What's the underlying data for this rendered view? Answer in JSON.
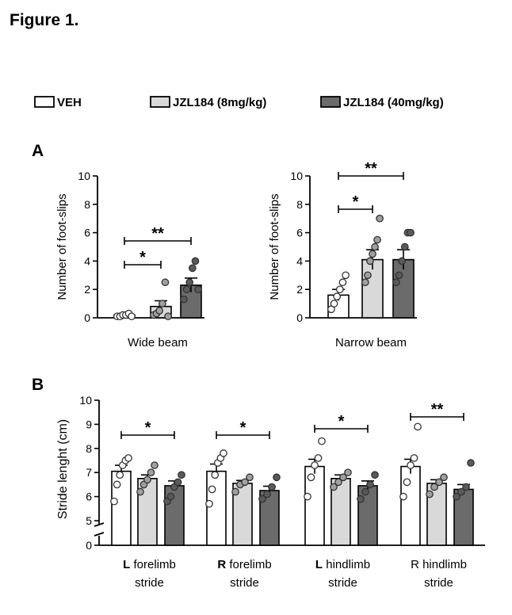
{
  "figure_title": "Figure 1.",
  "colors": {
    "VEH": "#ffffff",
    "JZL8": "#d9d9d9",
    "JZL40": "#6b6b6b",
    "dot_light": "#ffffff",
    "dot_mid": "#a0a0a0",
    "dot_dark": "#5a5a5a"
  },
  "legend": [
    {
      "key": "VEH",
      "label": "VEH"
    },
    {
      "key": "JZL8",
      "label": "JZL184 (8mg/kg)"
    },
    {
      "key": "JZL40",
      "label": "JZL184 (40mg/kg)"
    }
  ],
  "panel_labels": {
    "A": "A",
    "B": "B"
  },
  "chart_data": [
    {
      "type": "bar",
      "panel": "A",
      "title": "",
      "xlabel": "Wide beam",
      "ylabel": "Number of foot-slips",
      "ylim": [
        0,
        10
      ],
      "yticks": [
        "0",
        "2",
        "4",
        "6",
        "8",
        "10"
      ],
      "grid": false,
      "series": [
        {
          "name": "VEH",
          "value": 0.2,
          "sem": 0.1,
          "points": [
            0.1,
            0.1,
            0.2,
            0.2,
            0.3,
            0.1
          ]
        },
        {
          "name": "JZL184 (8mg/kg)",
          "value": 0.8,
          "sem": 0.4,
          "points": [
            0.2,
            0.3,
            0.5,
            1.0,
            2.5,
            0.1
          ]
        },
        {
          "name": "JZL184 (40mg/kg)",
          "value": 2.3,
          "sem": 0.5,
          "points": [
            1.3,
            2.0,
            2.5,
            3.5,
            4.0,
            2.0
          ]
        }
      ],
      "significance": [
        {
          "from": 0,
          "to": 1,
          "label": "*"
        },
        {
          "from": 0,
          "to": 2,
          "label": "**"
        }
      ]
    },
    {
      "type": "bar",
      "panel": "A",
      "title": "",
      "xlabel": "Narrow beam",
      "ylabel": "Number of foot-slips",
      "ylim": [
        0,
        10
      ],
      "yticks": [
        "0",
        "2",
        "4",
        "6",
        "8",
        "10"
      ],
      "grid": false,
      "series": [
        {
          "name": "VEH",
          "value": 1.6,
          "sem": 0.4,
          "points": [
            0.6,
            1.0,
            1.5,
            2.0,
            2.5,
            3.0
          ]
        },
        {
          "name": "JZL184 (8mg/kg)",
          "value": 4.1,
          "sem": 0.7,
          "points": [
            2.5,
            3.0,
            4.0,
            4.5,
            5.0,
            5.5,
            7.0
          ]
        },
        {
          "name": "JZL184 (40mg/kg)",
          "value": 4.1,
          "sem": 0.7,
          "points": [
            2.5,
            3.0,
            4.0,
            5.0,
            6.0,
            6.0
          ]
        }
      ],
      "significance": [
        {
          "from": 0,
          "to": 1,
          "label": "*"
        },
        {
          "from": 0,
          "to": 2,
          "label": "**"
        }
      ]
    },
    {
      "type": "bar",
      "panel": "B",
      "title": "",
      "ylabel": "Stride lenght (cm)",
      "ylim": [
        5,
        10
      ],
      "axis_break": true,
      "yticks": [
        "5",
        "6",
        "7",
        "8",
        "9",
        "10"
      ],
      "ytick_zero": "0",
      "grid": false,
      "groups": [
        {
          "label_bold": "L",
          "label_rest": " forelimb",
          "label_line2": "stride",
          "series": [
            {
              "name": "VEH",
              "value": 7.05,
              "sem": 0.25,
              "points": [
                5.8,
                6.5,
                6.9,
                7.3,
                7.5,
                7.6
              ]
            },
            {
              "name": "JZL184 (8mg/kg)",
              "value": 6.75,
              "sem": 0.15,
              "points": [
                6.2,
                6.5,
                6.7,
                7.0,
                7.3
              ]
            },
            {
              "name": "JZL184 (40mg/kg)",
              "value": 6.45,
              "sem": 0.2,
              "points": [
                5.8,
                6.0,
                6.4,
                6.6,
                6.9
              ]
            }
          ],
          "significance": [
            {
              "from": 0,
              "to": 2,
              "label": "*"
            }
          ]
        },
        {
          "label_bold": "R",
          "label_rest": " forelimb",
          "label_line2": "stride",
          "series": [
            {
              "name": "VEH",
              "value": 7.05,
              "sem": 0.3,
              "points": [
                5.7,
                6.3,
                6.9,
                7.4,
                7.6,
                7.8
              ]
            },
            {
              "name": "JZL184 (8mg/kg)",
              "value": 6.55,
              "sem": 0.12,
              "points": [
                6.2,
                6.5,
                6.6,
                6.8
              ]
            },
            {
              "name": "JZL184 (40mg/kg)",
              "value": 6.25,
              "sem": 0.18,
              "points": [
                5.9,
                6.1,
                6.4,
                6.8
              ]
            }
          ],
          "significance": [
            {
              "from": 0,
              "to": 2,
              "label": "*"
            }
          ]
        },
        {
          "label_bold": "L",
          "label_rest": " hindlimb",
          "label_line2": "stride",
          "series": [
            {
              "name": "VEH",
              "value": 7.25,
              "sem": 0.3,
              "points": [
                6.0,
                6.8,
                7.3,
                7.6,
                8.3
              ]
            },
            {
              "name": "JZL184 (8mg/kg)",
              "value": 6.75,
              "sem": 0.15,
              "points": [
                6.4,
                6.6,
                6.8,
                7.0
              ]
            },
            {
              "name": "JZL184 (40mg/kg)",
              "value": 6.45,
              "sem": 0.2,
              "points": [
                5.9,
                6.2,
                6.5,
                6.9
              ]
            }
          ],
          "significance": [
            {
              "from": 0,
              "to": 2,
              "label": "*"
            }
          ]
        },
        {
          "label_bold": "",
          "label_rest": "R hindlimb",
          "label_line2": "stride",
          "series": [
            {
              "name": "VEH",
              "value": 7.25,
              "sem": 0.3,
              "points": [
                6.0,
                6.6,
                7.3,
                7.6,
                8.9
              ]
            },
            {
              "name": "JZL184 (8mg/kg)",
              "value": 6.55,
              "sem": 0.15,
              "points": [
                6.1,
                6.4,
                6.6,
                6.8
              ]
            },
            {
              "name": "JZL184 (40mg/kg)",
              "value": 6.3,
              "sem": 0.2,
              "points": [
                6.0,
                6.2,
                6.4,
                7.4
              ]
            }
          ],
          "significance": [
            {
              "from": 0,
              "to": 2,
              "label": "**"
            }
          ]
        }
      ]
    }
  ]
}
